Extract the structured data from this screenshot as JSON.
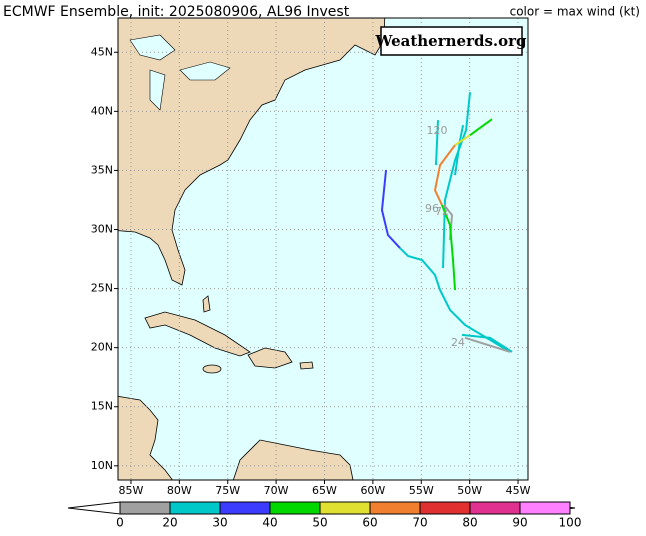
{
  "chart_data": {
    "type": "track-map",
    "title": "ECMWF Ensemble, init: 2025080906, AL96 Invest",
    "legend_title": "color = max wind (kt)",
    "watermark": "Weathernerds.org",
    "annotations": [
      "120",
      "96",
      "72",
      "24"
    ],
    "xlim": [
      -86.34,
      -43.97
    ],
    "ylim": [
      8.8,
      47.9
    ],
    "xticks": [
      {
        "value": -85,
        "label": "85W"
      },
      {
        "value": -80,
        "label": "80W"
      },
      {
        "value": -75,
        "label": "75W"
      },
      {
        "value": -70,
        "label": "70W"
      },
      {
        "value": -65,
        "label": "65W"
      },
      {
        "value": -60,
        "label": "60W"
      },
      {
        "value": -55,
        "label": "55W"
      },
      {
        "value": -50,
        "label": "50W"
      },
      {
        "value": -45,
        "label": "45W"
      }
    ],
    "yticks": [
      {
        "value": 10,
        "label": "10N"
      },
      {
        "value": 15,
        "label": "15N"
      },
      {
        "value": 20,
        "label": "20N"
      },
      {
        "value": 25,
        "label": "25N"
      },
      {
        "value": 30,
        "label": "30N"
      },
      {
        "value": 35,
        "label": "35N"
      },
      {
        "value": 40,
        "label": "40N"
      },
      {
        "value": 45,
        "label": "45N"
      }
    ],
    "grid": true,
    "colorbar": {
      "ticks": [
        0,
        20,
        30,
        40,
        50,
        60,
        70,
        80,
        90,
        100
      ],
      "colors": [
        "#a0a0a0",
        "#00c8c8",
        "#3c3cff",
        "#00d800",
        "#e0e030",
        "#f08030",
        "#e03030",
        "#e03090",
        "#ff80ff"
      ]
    },
    "series": [
      {
        "color": "#3c3cff",
        "x": [
          -58.64,
          -59.06,
          -58.44,
          -57.2
        ],
        "values": [
          35.03,
          31.64,
          29.53,
          28.43
        ]
      },
      {
        "color": "#00c8c8",
        "x": [
          -57.2,
          -56.37,
          -54.92,
          -53.58,
          -53.06,
          -52.03,
          -50.48,
          -47.89,
          -45.83
        ],
        "values": [
          28.43,
          27.76,
          27.42,
          26.15,
          24.88,
          23.19,
          21.92,
          20.66,
          19.64
        ]
      },
      {
        "color": "#00c8c8",
        "x": [
          -49.96,
          -50.37,
          -51.51,
          -52.55,
          -52.75
        ],
        "values": [
          41.62,
          38.41,
          35.87,
          32.49,
          26.74
        ]
      },
      {
        "color": "#00c8c8",
        "x": [
          -51.51,
          -50.99,
          -50.68
        ],
        "values": [
          34.6,
          37.56,
          38.83
        ]
      },
      {
        "color": "#00c8c8",
        "x": [
          -53.27,
          -53.48
        ],
        "values": [
          39.25,
          35.45
        ]
      },
      {
        "color": "#00c8c8",
        "x": [
          -50.79,
          -47.89,
          -45.62
        ],
        "values": [
          21.08,
          20.83,
          19.64
        ]
      },
      {
        "color": "#a0a0a0",
        "x": [
          -52.65,
          -51.82,
          -52.03
        ],
        "values": [
          32.07,
          31.22,
          29.11
        ]
      },
      {
        "color": "#a0a0a0",
        "x": [
          -50.48,
          -45.83
        ],
        "values": [
          20.83,
          19.64
        ]
      },
      {
        "color": "#00d800",
        "x": [
          -51.51,
          -51.72,
          -52.03,
          -52.86
        ],
        "values": [
          24.88,
          27.42,
          30.38,
          32.07
        ]
      },
      {
        "color": "#f08030",
        "x": [
          -52.86,
          -53.58,
          -53.06,
          -51.51
        ],
        "values": [
          32.07,
          33.33,
          35.45,
          37.14
        ]
      },
      {
        "color": "#e0e030",
        "x": [
          -51.51,
          -49.96
        ],
        "values": [
          37.14,
          37.98
        ]
      },
      {
        "color": "#00d800",
        "x": [
          -49.96,
          -47.69
        ],
        "values": [
          37.98,
          39.34
        ]
      }
    ]
  }
}
